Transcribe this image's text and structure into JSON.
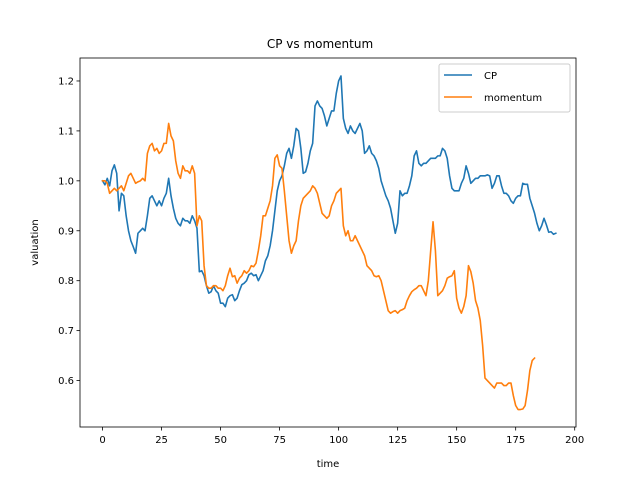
{
  "chart_data": {
    "type": "line",
    "title": "CP vs momentum",
    "xlabel": "time",
    "ylabel": "valuation",
    "xlim": [
      -9.55,
      200.55
    ],
    "ylim": [
      0.507,
      1.246
    ],
    "xticks": [
      0,
      25,
      50,
      75,
      100,
      125,
      150,
      175,
      200
    ],
    "yticks": [
      0.6,
      0.7,
      0.8,
      0.9,
      1.0,
      1.1,
      1.2
    ],
    "ytick_labels": [
      "0.6",
      "0.7",
      "0.8",
      "0.9",
      "1.0",
      "1.1",
      "1.2"
    ],
    "grid": false,
    "legend": "top-right",
    "series": [
      {
        "name": "CP",
        "color": "#1f77b4",
        "values": [
          1.0,
          0.992,
          1.005,
          0.99,
          1.02,
          1.032,
          1.015,
          0.94,
          0.975,
          0.97,
          0.93,
          0.9,
          0.88,
          0.868,
          0.855,
          0.895,
          0.9,
          0.905,
          0.9,
          0.93,
          0.965,
          0.97,
          0.96,
          0.95,
          0.96,
          0.95,
          0.965,
          0.975,
          1.005,
          0.97,
          0.945,
          0.925,
          0.915,
          0.91,
          0.925,
          0.92,
          0.92,
          0.915,
          0.93,
          0.92,
          0.905,
          0.818,
          0.82,
          0.81,
          0.79,
          0.775,
          0.778,
          0.79,
          0.78,
          0.775,
          0.755,
          0.755,
          0.748,
          0.765,
          0.77,
          0.772,
          0.76,
          0.765,
          0.78,
          0.792,
          0.795,
          0.8,
          0.812,
          0.815,
          0.81,
          0.812,
          0.8,
          0.81,
          0.82,
          0.84,
          0.85,
          0.87,
          0.9,
          0.94,
          0.98,
          1.0,
          1.01,
          1.03,
          1.055,
          1.065,
          1.045,
          1.07,
          1.105,
          1.1,
          1.065,
          1.015,
          1.018,
          1.035,
          1.06,
          1.075,
          1.15,
          1.16,
          1.15,
          1.145,
          1.13,
          1.11,
          1.125,
          1.14,
          1.14,
          1.175,
          1.2,
          1.21,
          1.125,
          1.105,
          1.095,
          1.11,
          1.1,
          1.095,
          1.105,
          1.115,
          1.1,
          1.055,
          1.06,
          1.07,
          1.055,
          1.05,
          1.04,
          1.025,
          1.0,
          0.985,
          0.97,
          0.96,
          0.945,
          0.92,
          0.895,
          0.915,
          0.98,
          0.97,
          0.975,
          0.975,
          0.99,
          1.01,
          1.05,
          1.06,
          1.035,
          1.03,
          1.035,
          1.035,
          1.04,
          1.045,
          1.045,
          1.045,
          1.05,
          1.05,
          1.065,
          1.06,
          1.045,
          1.01,
          0.985,
          0.98,
          0.98,
          0.98,
          0.995,
          1.005,
          1.03,
          1.015,
          0.995,
          1.0,
          1.005,
          1.005,
          1.01,
          1.01,
          1.01,
          1.012,
          1.01,
          0.985,
          0.995,
          1.01,
          1.01,
          0.99,
          0.975,
          0.975,
          0.97,
          0.96,
          0.955,
          0.965,
          0.97,
          0.97,
          0.995,
          0.993,
          0.993,
          0.965,
          0.95,
          0.935,
          0.915,
          0.9,
          0.91,
          0.925,
          0.912,
          0.897,
          0.898,
          0.893,
          0.895
        ]
      },
      {
        "name": "momentum",
        "color": "#ff7f0e",
        "values": [
          1.0,
          1.0,
          0.995,
          0.975,
          0.98,
          0.985,
          0.98,
          0.985,
          0.99,
          0.98,
          0.995,
          1.01,
          1.015,
          1.005,
          0.995,
          0.998,
          1.0,
          1.005,
          1.0,
          1.055,
          1.07,
          1.075,
          1.06,
          1.065,
          1.055,
          1.06,
          1.075,
          1.075,
          1.115,
          1.09,
          1.08,
          1.04,
          1.015,
          1.005,
          1.03,
          1.02,
          1.02,
          1.015,
          1.03,
          1.015,
          0.91,
          0.93,
          0.92,
          0.83,
          0.79,
          0.785,
          0.785,
          0.79,
          0.79,
          0.785,
          0.785,
          0.78,
          0.79,
          0.81,
          0.825,
          0.808,
          0.81,
          0.795,
          0.805,
          0.81,
          0.82,
          0.815,
          0.82,
          0.83,
          0.828,
          0.835,
          0.86,
          0.89,
          0.93,
          0.93,
          0.945,
          0.96,
          0.99,
          1.045,
          1.052,
          1.03,
          1.025,
          0.98,
          0.93,
          0.88,
          0.855,
          0.87,
          0.88,
          0.92,
          0.95,
          0.965,
          0.97,
          0.975,
          0.98,
          0.99,
          0.985,
          0.975,
          0.955,
          0.935,
          0.93,
          0.925,
          0.93,
          0.95,
          0.96,
          0.975,
          0.98,
          0.985,
          0.91,
          0.89,
          0.9,
          0.88,
          0.88,
          0.89,
          0.88,
          0.87,
          0.86,
          0.85,
          0.83,
          0.825,
          0.82,
          0.81,
          0.808,
          0.81,
          0.8,
          0.78,
          0.76,
          0.74,
          0.735,
          0.738,
          0.74,
          0.735,
          0.74,
          0.742,
          0.745,
          0.76,
          0.77,
          0.778,
          0.782,
          0.785,
          0.79,
          0.79,
          0.78,
          0.77,
          0.8,
          0.86,
          0.918,
          0.86,
          0.77,
          0.775,
          0.78,
          0.79,
          0.805,
          0.808,
          0.81,
          0.82,
          0.765,
          0.745,
          0.735,
          0.748,
          0.77,
          0.83,
          0.818,
          0.795,
          0.76,
          0.745,
          0.72,
          0.67,
          0.605,
          0.6,
          0.595,
          0.59,
          0.585,
          0.595,
          0.595,
          0.595,
          0.59,
          0.59,
          0.595,
          0.595,
          0.57,
          0.55,
          0.542,
          0.542,
          0.543,
          0.55,
          0.58,
          0.62,
          0.64,
          0.645
        ]
      }
    ]
  }
}
